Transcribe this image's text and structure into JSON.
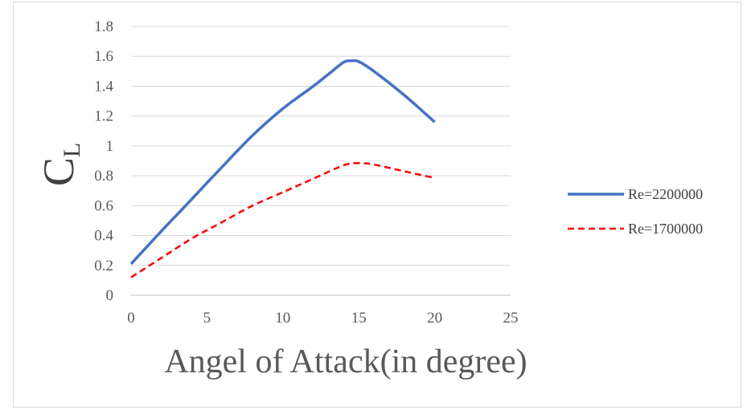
{
  "chart_data": {
    "type": "line",
    "xlabel": "Angel of Attack(in degree)",
    "ylabel": {
      "main": "C",
      "subscript": "L"
    },
    "xlim": [
      0,
      25
    ],
    "ylim": [
      0,
      1.8
    ],
    "xticks": [
      0,
      5,
      10,
      15,
      20,
      25
    ],
    "yticks": [
      0,
      0.2,
      0.4,
      0.6,
      0.8,
      1,
      1.2,
      1.4,
      1.6,
      1.8
    ],
    "grid": "horizontal",
    "legend_position": "right",
    "series": [
      {
        "name": "Re=2200000",
        "color": "#4472c4",
        "style": "solid",
        "x": [
          0,
          2,
          3.5,
          6,
          8,
          10,
          12,
          13,
          14,
          14.5,
          15,
          16,
          18,
          20
        ],
        "y": [
          0.21,
          0.43,
          0.59,
          0.86,
          1.07,
          1.25,
          1.4,
          1.48,
          1.56,
          1.57,
          1.565,
          1.5,
          1.34,
          1.16
        ]
      },
      {
        "name": "Re=1700000",
        "color": "#ff0000",
        "style": "dashed",
        "x": [
          0,
          2,
          4,
          6,
          8,
          10,
          12,
          14,
          15,
          16,
          18,
          20
        ],
        "y": [
          0.12,
          0.25,
          0.38,
          0.49,
          0.6,
          0.69,
          0.78,
          0.87,
          0.885,
          0.875,
          0.83,
          0.785
        ]
      }
    ]
  }
}
